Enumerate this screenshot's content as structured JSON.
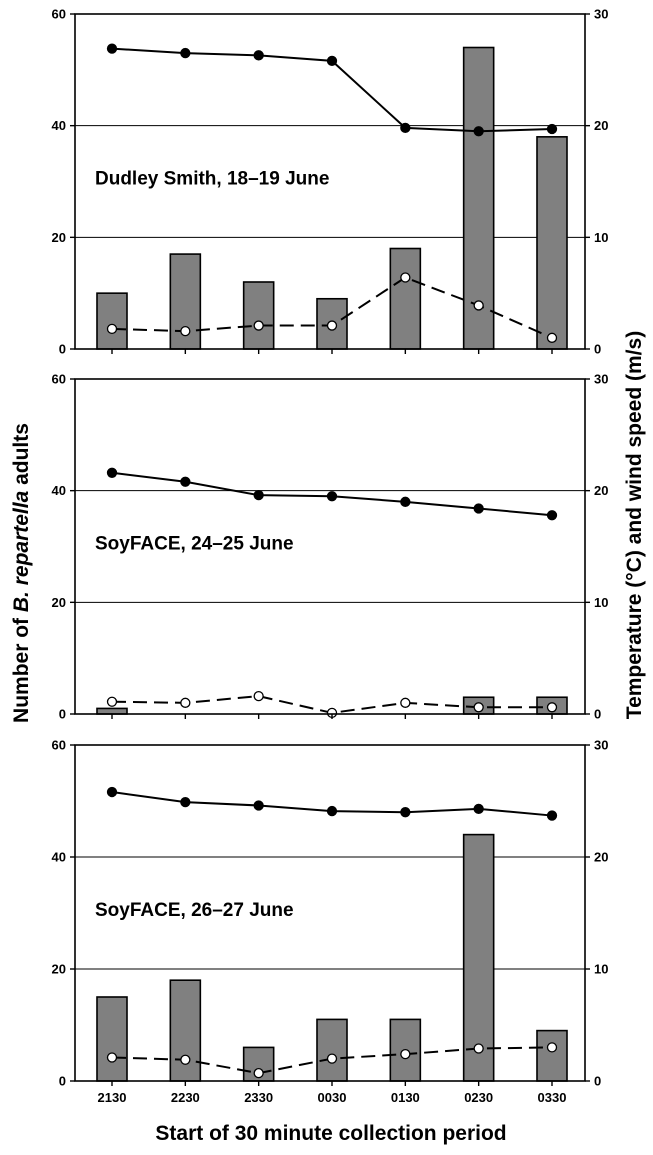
{
  "chart_data": {
    "type": "bar",
    "x_title": "Start of 30 minute collection period",
    "y_left_title": {
      "prefix": "Number of ",
      "italic": "B. repartella",
      "suffix": " adults"
    },
    "y_right_title": "Temperature (°C) and wind speed (m/s)",
    "categories": [
      "2130",
      "2230",
      "2330",
      "0030",
      "0130",
      "0230",
      "0330"
    ],
    "y_left": {
      "min": 0,
      "max": 60,
      "ticks": [
        0,
        20,
        40,
        60
      ]
    },
    "y_right": {
      "min": 0,
      "max": 30,
      "ticks": [
        0,
        10,
        20,
        30
      ]
    },
    "gridlines": [
      20,
      40
    ],
    "colors": {
      "bar_fill": "#808080",
      "bar_stroke": "#000000",
      "line": "#000000",
      "open_marker_fill": "#ffffff"
    },
    "panels": [
      {
        "label": "Dudley Smith, 18–19 June",
        "series": [
          {
            "kind": "bar",
            "axis": "left",
            "values": [
              10,
              17,
              12,
              9,
              18,
              54,
              38
            ]
          },
          {
            "kind": "line-solid-filled",
            "axis": "right",
            "values": [
              26.9,
              26.5,
              26.3,
              25.8,
              19.8,
              19.5,
              19.7
            ]
          },
          {
            "kind": "line-dashed-open",
            "axis": "right",
            "values": [
              1.8,
              1.6,
              2.1,
              2.1,
              6.4,
              3.9,
              1.0
            ]
          }
        ]
      },
      {
        "label": "SoyFACE, 24–25 June",
        "series": [
          {
            "kind": "bar",
            "axis": "left",
            "values": [
              1,
              0,
              0,
              0,
              0,
              3,
              3
            ]
          },
          {
            "kind": "line-solid-filled",
            "axis": "right",
            "values": [
              21.6,
              20.8,
              19.6,
              19.5,
              19.0,
              18.4,
              17.8
            ]
          },
          {
            "kind": "line-dashed-open",
            "axis": "right",
            "values": [
              1.1,
              1.0,
              1.6,
              0.1,
              1.0,
              0.6,
              0.6
            ]
          }
        ]
      },
      {
        "label": "SoyFACE, 26–27 June",
        "series": [
          {
            "kind": "bar",
            "axis": "left",
            "values": [
              15,
              18,
              6,
              11,
              11,
              44,
              9
            ]
          },
          {
            "kind": "line-solid-filled",
            "axis": "right",
            "values": [
              25.8,
              24.9,
              24.6,
              24.1,
              24.0,
              24.3,
              23.7
            ]
          },
          {
            "kind": "line-dashed-open",
            "axis": "right",
            "values": [
              2.1,
              1.9,
              0.7,
              2.0,
              2.4,
              2.9,
              3.0
            ]
          }
        ]
      }
    ]
  }
}
